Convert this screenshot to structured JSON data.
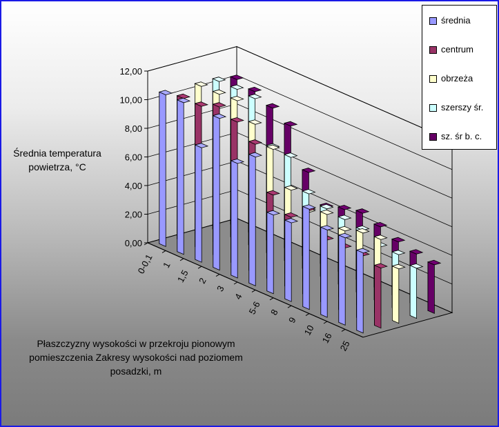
{
  "chart_data": {
    "type": "bar",
    "subtype": "3d-clustered-column",
    "title": "",
    "ylabel": "Średnia temperatura powietrza, °C",
    "xlabel": "Płaszczyzny wysokości w przekroju pionowym pomieszczenia Zakresy wysokości nad poziomem posadzki, m",
    "ylim": [
      0,
      12
    ],
    "yticks": [
      "0,00",
      "2,00",
      "4,00",
      "6,00",
      "8,00",
      "10,00",
      "12,00"
    ],
    "categories": [
      "0-0,1",
      "1",
      "1,5",
      "2",
      "3",
      "4",
      "5-6",
      "8",
      "9",
      "10",
      "16",
      "25"
    ],
    "series": [
      {
        "name": "średnia",
        "color": "#9999ff",
        "values": [
          10.6,
          10.6,
          8.0,
          10.6,
          8.0,
          9.0,
          5.5,
          5.5,
          7.0,
          6.1,
          6.1,
          5.6
        ]
      },
      {
        "name": "centrum",
        "color": "#993366",
        "values": [
          10.0,
          10.0,
          10.5,
          10.0,
          9.0,
          6.0,
          5.0,
          6.0,
          4.5,
          4.5,
          4.5,
          4.2
        ]
      },
      {
        "name": "obrzeża",
        "color": "#ffffcc",
        "values": [
          10.5,
          10.5,
          10.6,
          9.5,
          8.3,
          6.0,
          5.0,
          5.4,
          4.8,
          5.2,
          5.3,
          3.8
        ]
      },
      {
        "name": "szerszy śr.",
        "color": "#ccffff",
        "values": [
          10.5,
          10.5,
          10.4,
          7.5,
          7.4,
          5.4,
          4.9,
          4.7,
          4.5,
          3.9,
          3.9,
          3.5
        ]
      },
      {
        "name": "sz. śr b. c.",
        "color": "#660066",
        "values": [
          10.3,
          10.0,
          9.4,
          8.7,
          6.0,
          4.1,
          4.5,
          4.8,
          4.4,
          3.9,
          3.6,
          3.4
        ]
      }
    ],
    "grid": true,
    "legend_position": "top-right"
  },
  "legend": {
    "items": [
      {
        "label": "średnia",
        "color": "#9999ff"
      },
      {
        "label": "centrum",
        "color": "#993366"
      },
      {
        "label": "obrzeża",
        "color": "#ffffcc"
      },
      {
        "label": "szerszy śr.",
        "color": "#ccffff"
      },
      {
        "label": "sz. śr b. c.",
        "color": "#660066"
      }
    ]
  }
}
